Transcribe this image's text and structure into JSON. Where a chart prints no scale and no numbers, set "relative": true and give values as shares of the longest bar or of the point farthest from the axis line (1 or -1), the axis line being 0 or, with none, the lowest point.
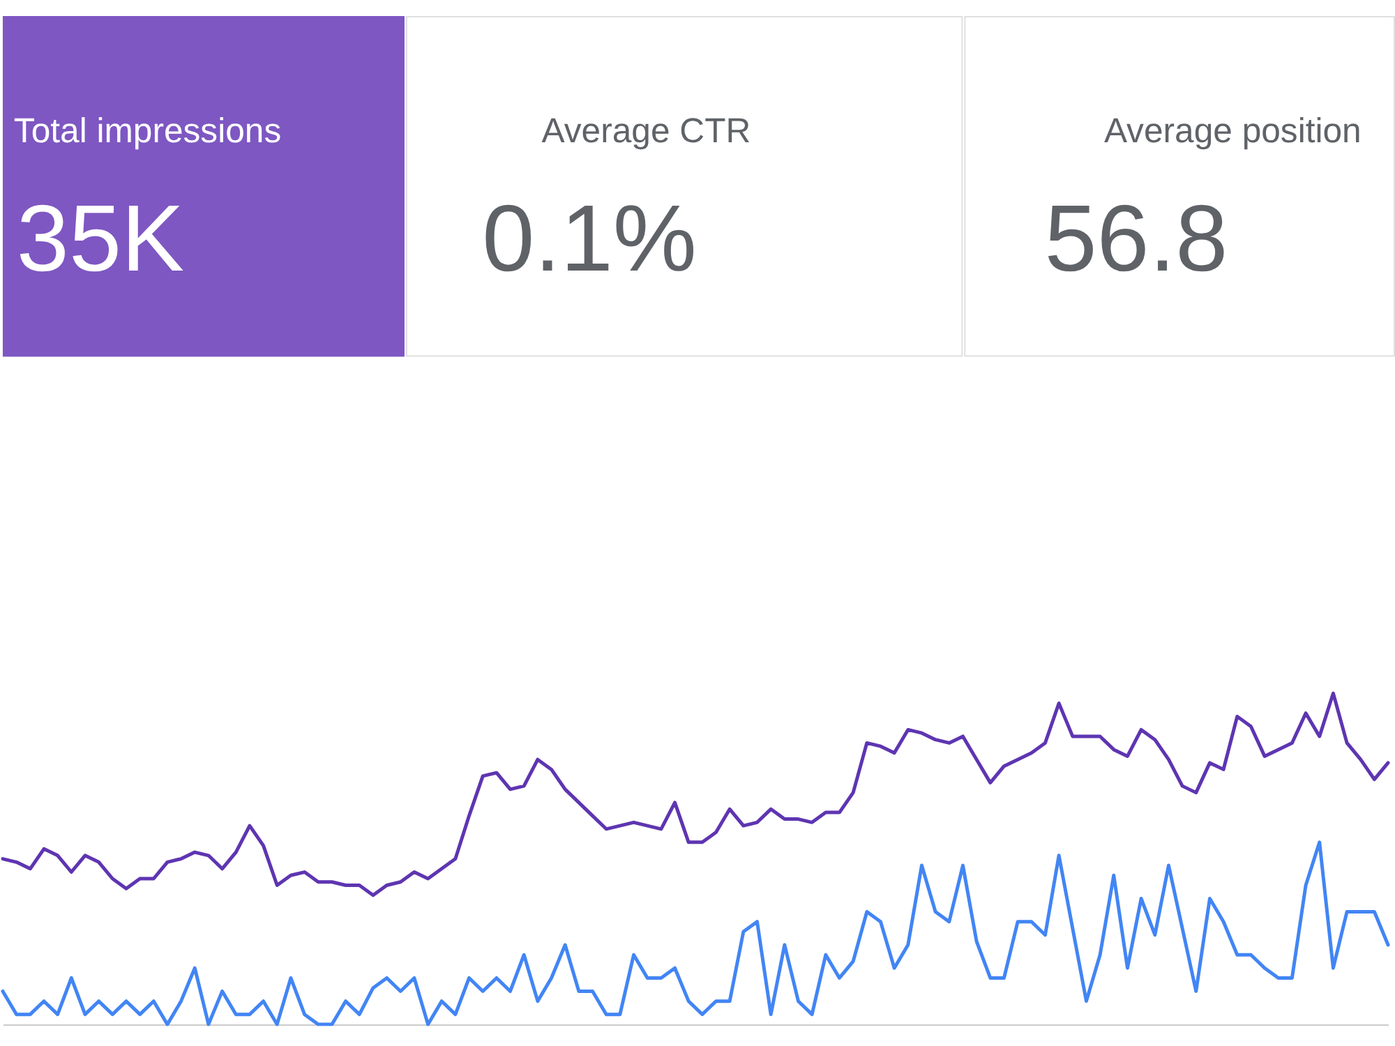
{
  "chart_data": [
    {
      "type": "other",
      "title": "Total impressions",
      "annotations": [
        "35K"
      ],
      "color": "#7e57c2"
    },
    {
      "type": "other",
      "title": "Average CTR",
      "annotations": [
        "0.1%"
      ]
    },
    {
      "type": "other",
      "title": "Average position",
      "annotations": [
        "56.8"
      ]
    },
    {
      "type": "line",
      "relative": true,
      "categories": [
        null,
        null,
        null,
        null,
        null,
        null,
        null,
        null,
        null,
        null,
        null,
        null,
        null,
        null,
        null,
        null,
        null,
        null,
        null,
        null,
        null,
        null,
        null,
        null,
        null,
        null,
        null,
        null,
        null,
        null,
        null,
        null,
        null,
        null,
        null,
        null,
        null,
        null,
        null,
        null,
        null,
        null,
        null,
        null,
        null,
        null,
        null,
        null,
        null,
        null,
        null,
        null,
        null,
        null,
        null,
        null,
        null,
        null,
        null,
        null,
        null,
        null,
        null,
        null,
        null,
        null,
        null,
        null,
        null,
        null,
        null,
        null,
        null,
        null,
        null,
        null,
        null,
        null,
        null,
        null,
        null,
        null,
        null,
        null,
        null,
        null,
        null,
        null,
        null,
        null,
        null,
        null,
        null,
        null,
        null,
        null,
        null,
        null,
        null,
        null,
        null,
        null
      ],
      "series": [
        {
          "color": "#5e35b1",
          "values": [
            0.5,
            0.49,
            0.47,
            0.53,
            0.51,
            0.46,
            0.51,
            0.49,
            0.44,
            0.41,
            0.44,
            0.44,
            0.49,
            0.5,
            0.52,
            0.51,
            0.47,
            0.52,
            0.6,
            0.54,
            0.42,
            0.45,
            0.46,
            0.43,
            0.43,
            0.42,
            0.42,
            0.39,
            0.42,
            0.43,
            0.46,
            0.44,
            0.47,
            0.5,
            0.63,
            0.75,
            0.76,
            0.71,
            0.72,
            0.8,
            0.77,
            0.71,
            0.67,
            0.63,
            0.59,
            0.6,
            0.61,
            0.6,
            0.59,
            0.67,
            0.55,
            0.55,
            0.58,
            0.65,
            0.6,
            0.61,
            0.65,
            0.62,
            0.62,
            0.61,
            0.64,
            0.64,
            0.7,
            0.85,
            0.84,
            0.82,
            0.89,
            0.88,
            0.86,
            0.85,
            0.87,
            0.8,
            0.73,
            0.78,
            0.8,
            0.82,
            0.85,
            0.97,
            0.87,
            0.87,
            0.87,
            0.83,
            0.81,
            0.89,
            0.86,
            0.8,
            0.72,
            0.7,
            0.79,
            0.77,
            0.93,
            0.9,
            0.81,
            0.83,
            0.85,
            0.94,
            0.87,
            1,
            0.85,
            0.8,
            0.74,
            0.79
          ]
        },
        {
          "color": "#4285f4",
          "values": [
            0.1,
            0.03,
            0.03,
            0.07,
            0.03,
            0.14,
            0.03,
            0.07,
            0.03,
            0.07,
            0.03,
            0.07,
            0,
            0.07,
            0.17,
            0,
            0.1,
            0.03,
            0.03,
            0.07,
            0,
            0.14,
            0.03,
            0,
            0,
            0.07,
            0.03,
            0.11,
            0.14,
            0.1,
            0.14,
            0,
            0.07,
            0.03,
            0.14,
            0.1,
            0.14,
            0.1,
            0.21,
            0.07,
            0.14,
            0.24,
            0.1,
            0.1,
            0.03,
            0.03,
            0.21,
            0.14,
            0.14,
            0.17,
            0.07,
            0.03,
            0.07,
            0.07,
            0.28,
            0.31,
            0.03,
            0.24,
            0.07,
            0.03,
            0.21,
            0.14,
            0.19,
            0.34,
            0.31,
            0.17,
            0.24,
            0.48,
            0.34,
            0.31,
            0.48,
            0.25,
            0.14,
            0.14,
            0.31,
            0.31,
            0.27,
            0.51,
            0.29,
            0.07,
            0.21,
            0.45,
            0.17,
            0.38,
            0.27,
            0.48,
            0.29,
            0.1,
            0.38,
            0.31,
            0.21,
            0.21,
            0.17,
            0.14,
            0.14,
            0.42,
            0.55,
            0.17,
            0.34,
            0.34,
            0.34,
            0.24
          ]
        }
      ]
    }
  ]
}
